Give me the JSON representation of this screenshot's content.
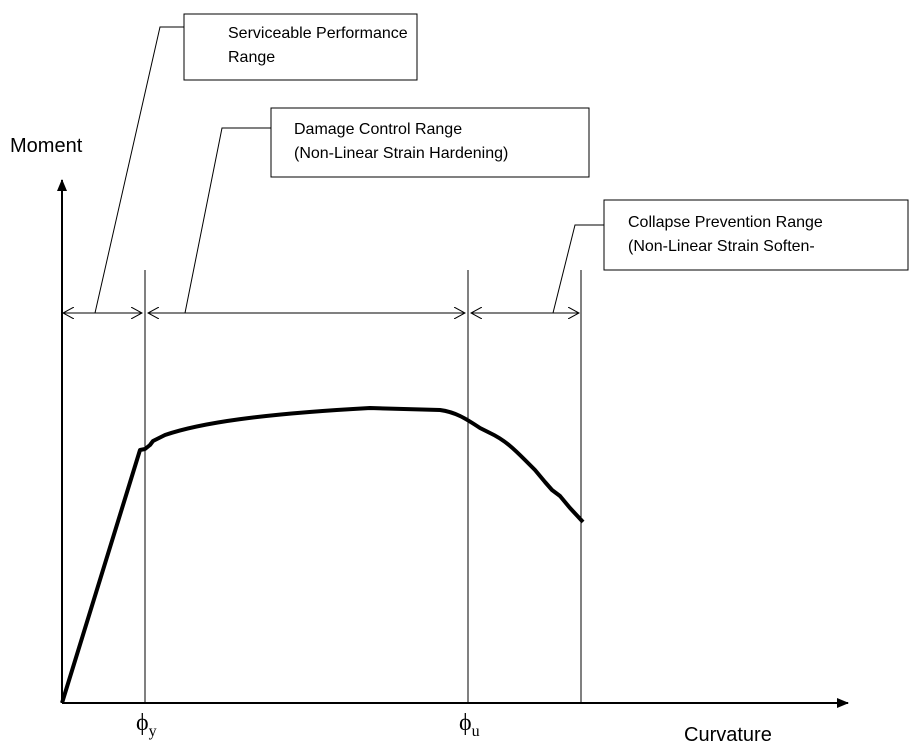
{
  "boxes": [
    {
      "lines": [
        "Serviceable Performance",
        "Range"
      ]
    },
    {
      "lines": [
        "Damage Control Range",
        "(Non-Linear Strain Hardening)"
      ]
    },
    {
      "lines": [
        "Collapse Prevention Range",
        "(Non-Linear Strain Soften-"
      ]
    }
  ],
  "axes": {
    "y_label": "Moment",
    "x_label": "Curvature"
  },
  "points": [
    {
      "symbol": "ϕ",
      "subscript": "y"
    },
    {
      "symbol": "ϕ",
      "subscript": "u"
    }
  ]
}
